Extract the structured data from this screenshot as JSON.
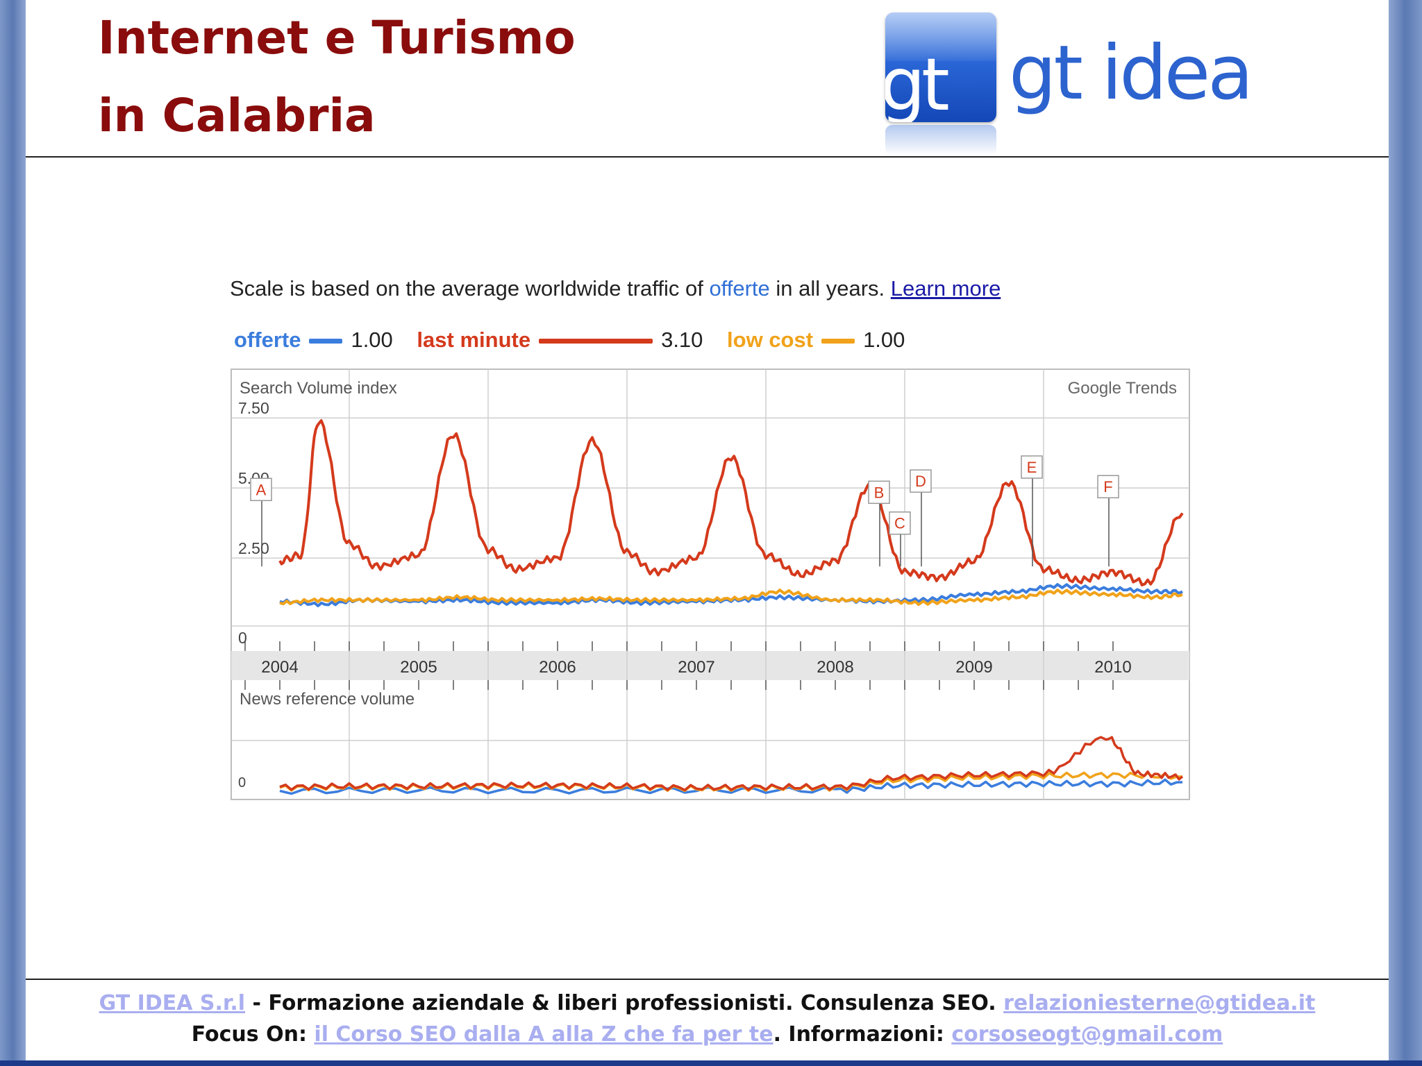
{
  "slide": {
    "title_line1": "Internet e Turismo",
    "title_line2": "in Calabria"
  },
  "logo": {
    "box_text": "gt",
    "word": "gt idea"
  },
  "chart_intro": {
    "prefix": "Scale is based on the average worldwide traffic of ",
    "keyword": "offerte",
    "suffix": " in all years. ",
    "link": "Learn more"
  },
  "colors": {
    "offerte": "#3b7ddd",
    "last_minute": "#d43a1c",
    "low_cost": "#f0a21a",
    "grid": "#cfcfcf",
    "band": "#e6e6e6"
  },
  "chart_data": {
    "type": "line",
    "panels": [
      {
        "title": "Search Volume index",
        "watermark": "Google Trends",
        "y_ticks": [
          "7.50",
          "5.00",
          "2.50",
          "0"
        ],
        "ylim": [
          0,
          8
        ],
        "x_labels": [
          "2004",
          "2005",
          "2006",
          "2007",
          "2008",
          "2009",
          "2010"
        ],
        "series": [
          {
            "name": "offerte",
            "color_key": "offerte",
            "legend_value": "1.00",
            "x": [
              2004.0,
              2004.3,
              2004.6,
              2005.0,
              2005.3,
              2005.6,
              2006.0,
              2006.3,
              2006.6,
              2007.0,
              2007.3,
              2007.6,
              2008.0,
              2008.3,
              2008.6,
              2009.0,
              2009.3,
              2009.6,
              2010.0,
              2010.3,
              2010.5
            ],
            "y": [
              0.95,
              0.85,
              1.0,
              0.95,
              1.0,
              0.9,
              0.9,
              1.0,
              0.9,
              0.95,
              1.0,
              1.1,
              1.0,
              0.95,
              1.0,
              1.2,
              1.3,
              1.5,
              1.4,
              1.3,
              1.3
            ]
          },
          {
            "name": "last minute",
            "color_key": "last_minute",
            "legend_value": "3.10",
            "x": [
              2004.0,
              2004.15,
              2004.28,
              2004.5,
              2004.7,
              2005.0,
              2005.25,
              2005.5,
              2005.7,
              2006.0,
              2006.25,
              2006.5,
              2006.7,
              2007.0,
              2007.25,
              2007.5,
              2007.75,
              2008.0,
              2008.25,
              2008.5,
              2008.75,
              2009.0,
              2009.25,
              2009.5,
              2009.75,
              2010.0,
              2010.25,
              2010.5
            ],
            "y": [
              2.4,
              2.6,
              7.4,
              3.0,
              2.2,
              2.6,
              6.9,
              2.8,
              2.1,
              2.5,
              6.7,
              2.7,
              2.0,
              2.5,
              6.1,
              2.6,
              1.9,
              2.4,
              5.1,
              2.0,
              1.8,
              2.4,
              5.2,
              2.1,
              1.7,
              2.0,
              1.6,
              4.1
            ]
          },
          {
            "name": "low cost",
            "color_key": "low_cost",
            "legend_value": "1.00",
            "x": [
              2004.0,
              2004.3,
              2004.6,
              2005.0,
              2005.3,
              2005.6,
              2006.0,
              2006.3,
              2006.6,
              2007.0,
              2007.3,
              2007.6,
              2008.0,
              2008.3,
              2008.6,
              2009.0,
              2009.3,
              2009.6,
              2010.0,
              2010.3,
              2010.5
            ],
            "y": [
              0.9,
              1.0,
              1.0,
              1.0,
              1.1,
              1.0,
              1.0,
              1.05,
              1.0,
              1.0,
              1.05,
              1.3,
              1.0,
              1.0,
              0.9,
              1.0,
              1.1,
              1.3,
              1.2,
              1.1,
              1.2
            ]
          }
        ],
        "annotations": [
          {
            "label": "A",
            "x": 2003.85,
            "y": 4.6
          },
          {
            "label": "B",
            "x": 2008.3,
            "y": 4.5
          },
          {
            "label": "C",
            "x": 2008.45,
            "y": 3.4
          },
          {
            "label": "D",
            "x": 2008.6,
            "y": 4.9
          },
          {
            "label": "E",
            "x": 2009.4,
            "y": 5.4
          },
          {
            "label": "F",
            "x": 2009.95,
            "y": 4.7
          }
        ]
      },
      {
        "title": "News reference volume",
        "y_ticks": [
          "0"
        ],
        "ylim": [
          0,
          8
        ],
        "series": [
          {
            "name": "offerte",
            "color_key": "offerte",
            "x": [
              2004.0,
              2005.0,
              2006.0,
              2007.0,
              2008.0,
              2008.5,
              2009.0,
              2009.5,
              2010.0,
              2010.5
            ],
            "y": [
              0.2,
              0.3,
              0.25,
              0.3,
              0.3,
              0.9,
              1.0,
              1.1,
              1.1,
              1.3
            ]
          },
          {
            "name": "last minute",
            "color_key": "last_minute",
            "x": [
              2004.0,
              2004.5,
              2005.0,
              2005.5,
              2006.0,
              2006.5,
              2007.0,
              2007.5,
              2008.0,
              2008.5,
              2009.0,
              2009.5,
              2009.95,
              2010.2,
              2010.5
            ],
            "y": [
              0.7,
              0.8,
              0.8,
              0.9,
              0.9,
              0.8,
              0.6,
              0.7,
              0.7,
              1.9,
              2.2,
              2.4,
              6.9,
              2.3,
              2.0
            ]
          },
          {
            "name": "low cost",
            "color_key": "low_cost",
            "x": [
              2004.0,
              2004.5,
              2005.0,
              2005.5,
              2006.0,
              2006.5,
              2007.0,
              2007.5,
              2008.0,
              2008.5,
              2009.0,
              2009.5,
              2010.0,
              2010.5
            ],
            "y": [
              0.6,
              0.7,
              0.7,
              0.8,
              0.8,
              0.7,
              0.5,
              0.6,
              0.6,
              1.6,
              1.9,
              2.1,
              2.2,
              2.0
            ]
          }
        ]
      }
    ]
  },
  "footer": {
    "line1_link1": "GT IDEA S.r.l",
    "line1_text": " - Formazione aziendale & liberi professionisti. Consulenza SEO. ",
    "line1_link2": "relazioniesterne@gtidea.it",
    "line2_label": "Focus On: ",
    "line2_link1": "il Corso SEO dalla A alla Z che fa per te",
    "line2_text": ". Informazioni: ",
    "line2_link2": "corsoseogt@gmail.com"
  }
}
